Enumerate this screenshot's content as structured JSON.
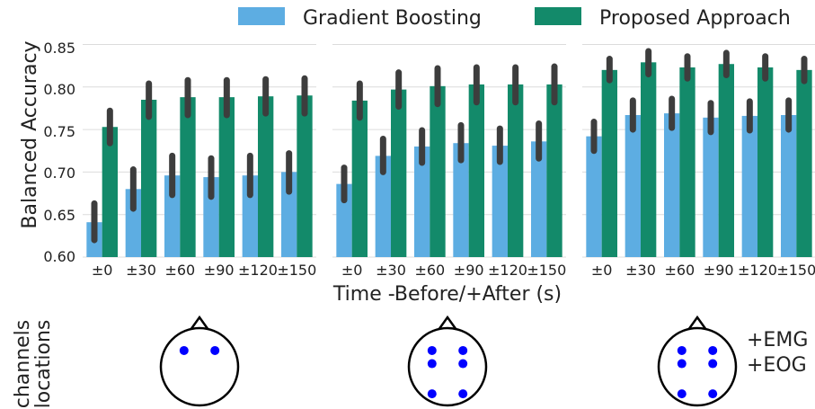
{
  "legend": {
    "items": [
      {
        "label": "Gradient Boosting",
        "color": "#5DADE2"
      },
      {
        "label": "Proposed Approach",
        "color": "#138A6A"
      }
    ],
    "placement": "top"
  },
  "y_axis": {
    "label": "Balanced Accuracy",
    "ticks": [
      "0.60",
      "0.65",
      "0.70",
      "0.75",
      "0.80",
      "0.85"
    ]
  },
  "x_axis": {
    "label": "Time -Before/+After (s)"
  },
  "channels_label": [
    "channels",
    "locations"
  ],
  "extra_label": [
    "+EMG",
    "+EOG"
  ],
  "chart_data": [
    {
      "type": "bar",
      "categories": [
        "±0",
        "±30",
        "±60",
        "±90",
        "±120",
        "±150"
      ],
      "ylim": [
        0.6,
        0.86
      ],
      "grid": true,
      "series": [
        {
          "name": "Gradient Boosting",
          "values": [
            0.641,
            0.68,
            0.696,
            0.694,
            0.696,
            0.7
          ],
          "err_low": [
            0.62,
            0.657,
            0.673,
            0.671,
            0.673,
            0.677
          ],
          "err_high": [
            0.663,
            0.703,
            0.719,
            0.716,
            0.719,
            0.722
          ]
        },
        {
          "name": "Proposed Approach",
          "values": [
            0.753,
            0.785,
            0.788,
            0.788,
            0.789,
            0.79
          ],
          "err_low": [
            0.734,
            0.765,
            0.767,
            0.767,
            0.769,
            0.769
          ],
          "err_high": [
            0.772,
            0.804,
            0.808,
            0.808,
            0.809,
            0.81
          ]
        }
      ]
    },
    {
      "type": "bar",
      "categories": [
        "±0",
        "±30",
        "±60",
        "±90",
        "±120",
        "±150"
      ],
      "ylim": [
        0.6,
        0.86
      ],
      "grid": true,
      "series": [
        {
          "name": "Gradient Boosting",
          "values": [
            0.686,
            0.719,
            0.73,
            0.734,
            0.731,
            0.736
          ],
          "err_low": [
            0.667,
            0.7,
            0.711,
            0.714,
            0.712,
            0.716
          ],
          "err_high": [
            0.705,
            0.739,
            0.749,
            0.755,
            0.751,
            0.757
          ]
        },
        {
          "name": "Proposed Approach",
          "values": [
            0.784,
            0.797,
            0.801,
            0.803,
            0.803,
            0.803
          ],
          "err_low": [
            0.764,
            0.777,
            0.78,
            0.782,
            0.782,
            0.782
          ],
          "err_high": [
            0.804,
            0.817,
            0.822,
            0.823,
            0.823,
            0.824
          ]
        }
      ]
    },
    {
      "type": "bar",
      "categories": [
        "±0",
        "±30",
        "±60",
        "±90",
        "±120",
        "±150"
      ],
      "ylim": [
        0.6,
        0.86
      ],
      "grid": true,
      "series": [
        {
          "name": "Gradient Boosting",
          "values": [
            0.742,
            0.767,
            0.769,
            0.764,
            0.766,
            0.767
          ],
          "err_low": [
            0.725,
            0.75,
            0.752,
            0.747,
            0.749,
            0.75
          ],
          "err_high": [
            0.759,
            0.784,
            0.786,
            0.781,
            0.783,
            0.784
          ]
        },
        {
          "name": "Proposed Approach",
          "values": [
            0.82,
            0.829,
            0.823,
            0.827,
            0.823,
            0.82
          ],
          "err_low": [
            0.808,
            0.815,
            0.81,
            0.814,
            0.81,
            0.807
          ],
          "err_high": [
            0.833,
            0.842,
            0.836,
            0.84,
            0.836,
            0.833
          ]
        }
      ]
    }
  ],
  "head_diagrams": [
    {
      "electrodes": [
        [
          -0.4,
          -0.42
        ],
        [
          0.4,
          -0.42
        ]
      ]
    },
    {
      "electrodes": [
        [
          -0.4,
          -0.42
        ],
        [
          0.4,
          -0.42
        ],
        [
          -0.4,
          -0.08
        ],
        [
          0.4,
          -0.08
        ],
        [
          -0.4,
          0.7
        ],
        [
          0.4,
          0.7
        ]
      ]
    },
    {
      "electrodes": [
        [
          -0.4,
          -0.42
        ],
        [
          0.4,
          -0.42
        ],
        [
          -0.4,
          -0.08
        ],
        [
          0.4,
          -0.08
        ],
        [
          -0.4,
          0.7
        ],
        [
          0.4,
          0.7
        ]
      ]
    }
  ]
}
